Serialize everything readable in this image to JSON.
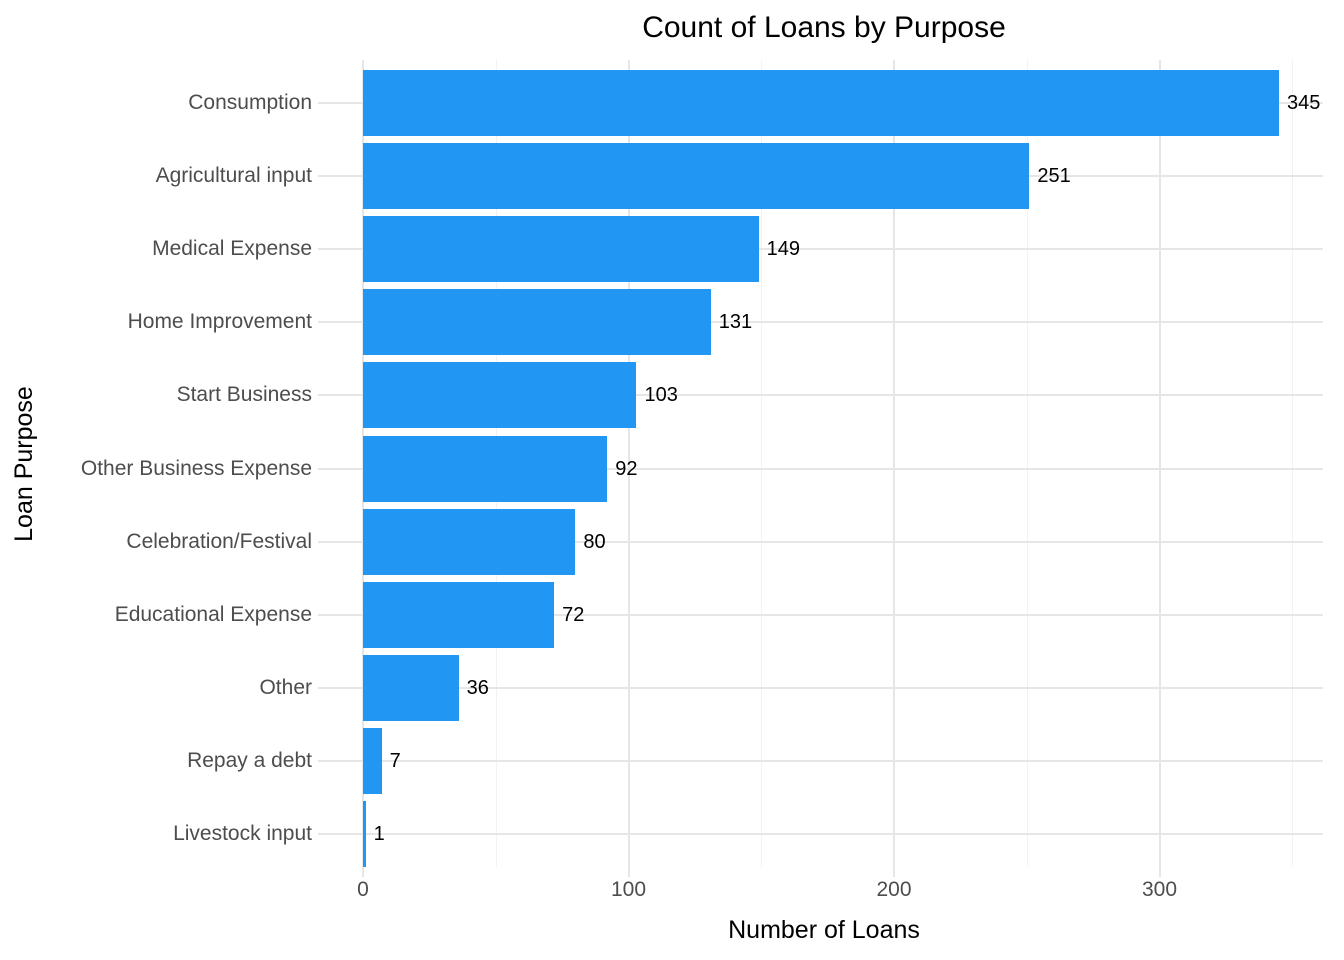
{
  "chart_data": {
    "type": "bar",
    "orientation": "horizontal",
    "title": "Count of Loans by Purpose",
    "xlabel": "Number of Loans",
    "ylabel": "Loan Purpose",
    "categories": [
      "Consumption",
      "Agricultural input",
      "Medical Expense",
      "Home Improvement",
      "Start Business",
      "Other Business Expense",
      "Celebration/Festival",
      "Educational Expense",
      "Other",
      "Repay a debt",
      "Livestock input"
    ],
    "values": [
      345,
      251,
      149,
      131,
      103,
      92,
      80,
      72,
      36,
      7,
      1
    ],
    "value_labels": [
      "345",
      "251",
      "149",
      "131",
      "103",
      "92",
      "80",
      "72",
      "36",
      "7",
      "1"
    ],
    "xlim": [
      0,
      362
    ],
    "x_major_ticks": [
      0,
      100,
      200,
      300
    ],
    "x_minor_ticks": [
      50,
      150,
      250,
      350
    ],
    "x_tick_labels": [
      "0",
      "100",
      "200",
      "300"
    ],
    "grid": "on",
    "legend": "none",
    "colors": {
      "bar": "#2196F3",
      "grid_major": "#E6E6E6",
      "grid_minor": "#F2F2F2",
      "axis_text": "#4D4D4D",
      "title_text": "#000000",
      "value_text": "#000000",
      "background": "#FFFFFF"
    }
  }
}
